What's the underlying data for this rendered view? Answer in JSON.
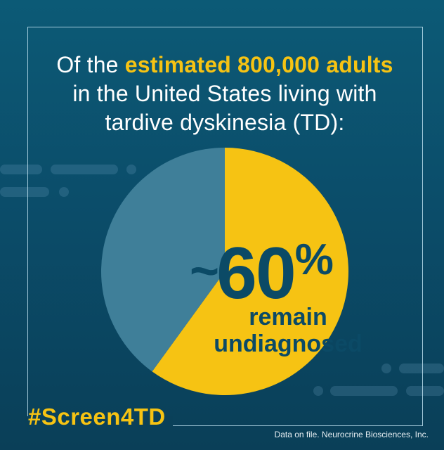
{
  "headline": {
    "line1_prefix": "Of the ",
    "line1_highlight": "estimated 800,000 adults",
    "line2": "in the United States living with",
    "line3": "tardive dyskinesia (TD):"
  },
  "stat": {
    "tilde": "~",
    "number": "60",
    "percent_sign": "%",
    "label_line1": "remain",
    "label_line2": "undiagnosed"
  },
  "hashtag": "#Screen4TD",
  "footnote": "Data on file. Neurocrine Biosciences, Inc.",
  "colors": {
    "background": "#0b4d6a",
    "accent_yellow": "#f6c313",
    "remainder_slice": "#3f7f99",
    "stat_text": "#0b4a66"
  },
  "chart_data": {
    "type": "pie",
    "values": [
      60,
      40
    ],
    "slice_colors": [
      "#f6c313",
      "#3f7f99"
    ]
  }
}
